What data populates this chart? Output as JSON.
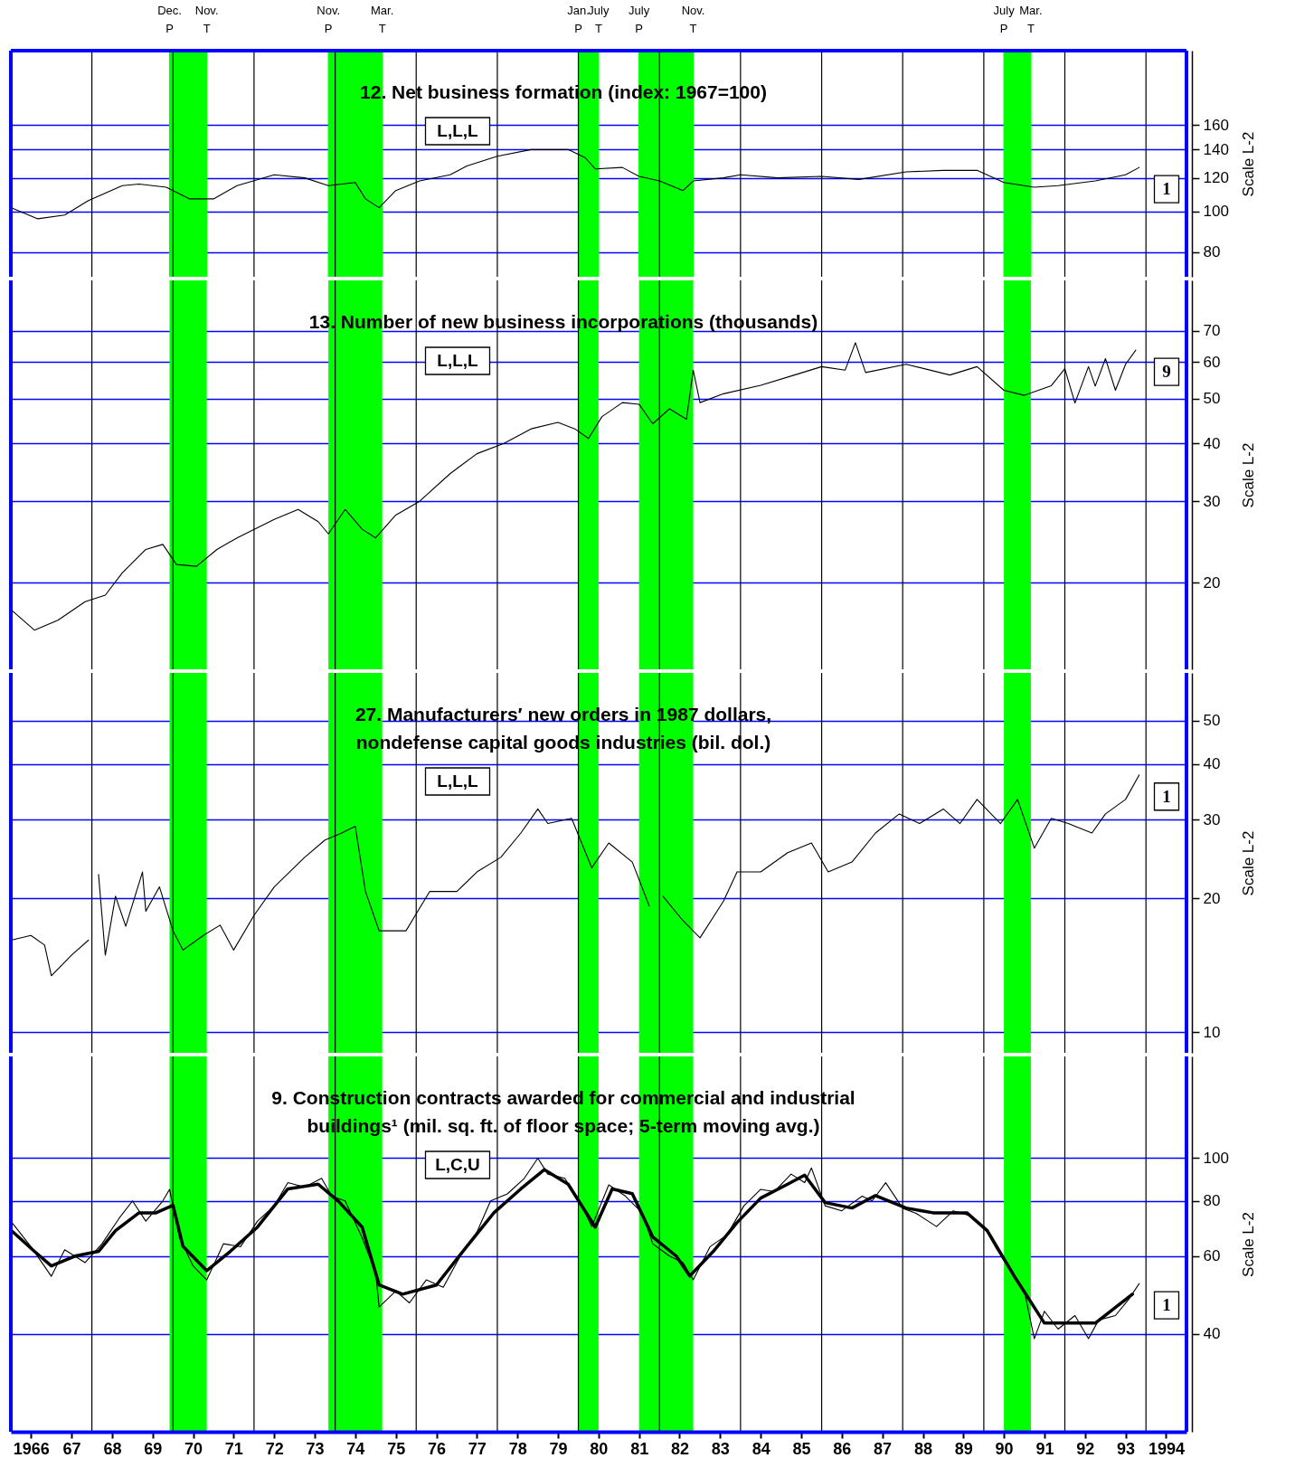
{
  "chart_data": [
    {
      "type": "line",
      "title": "12. Net business formation (index: 1967=100)",
      "annotations": [
        "L,L,L",
        "1"
      ],
      "ylabel": "Scale L-2",
      "xlim": [
        "1966",
        "1995"
      ],
      "ylim": [
        70,
        240
      ],
      "yticks": [
        80,
        100,
        120,
        140,
        160
      ],
      "log": true,
      "grid": "y",
      "tick_labels": "y",
      "series": [
        {
          "color": "#000000",
          "x": [
            "1966-01",
            "1966-09",
            "1967-05",
            "1967-12",
            "1968-10",
            "1969-03",
            "1969-11",
            "1970-06",
            "1971-01",
            "1971-08",
            "1972-07",
            "1973-04",
            "1973-11",
            "1974-07",
            "1974-10",
            "1975-02",
            "1975-07",
            "1976-02",
            "1976-11",
            "1977-04",
            "1978-01",
            "1978-11",
            "1979-10",
            "1980-03",
            "1980-06",
            "1981-02",
            "1981-07",
            "1982-01",
            "1982-08",
            "1982-11",
            "1983-08",
            "1984-01",
            "1984-12",
            "1986-01",
            "1986-12",
            "1988-02",
            "1989-01",
            "1989-11",
            "1990-07",
            "1991-04",
            "1991-11",
            "1992-10",
            "1993-07",
            "1993-11"
          ],
          "values": [
            102,
            96,
            98,
            106,
            115,
            116,
            114,
            107,
            107,
            115,
            122,
            120,
            115,
            117,
            107,
            102,
            112,
            118,
            122,
            128,
            135,
            140,
            140,
            134,
            126,
            127,
            121,
            118,
            112,
            118,
            120,
            122,
            120,
            121,
            119,
            124,
            125,
            125,
            117,
            114,
            115,
            118,
            122,
            127
          ]
        }
      ],
      "bands": [
        {
          "axis": "x",
          "from": "1969-12",
          "to": "1970-11",
          "color": "#00ff00"
        },
        {
          "axis": "x",
          "from": "1973-11",
          "to": "1975-03",
          "color": "#00ff00"
        },
        {
          "axis": "x",
          "from": "1980-01",
          "to": "1980-07",
          "color": "#00ff00"
        },
        {
          "axis": "x",
          "from": "1981-07",
          "to": "1982-11",
          "color": "#00ff00"
        },
        {
          "axis": "x",
          "from": "1990-07",
          "to": "1991-03",
          "color": "#00ff00"
        }
      ],
      "ref_lines": [
        {
          "axis": "x",
          "value": "1969-12",
          "label": "Dec. P",
          "color": "#00ff00"
        },
        {
          "axis": "x",
          "value": "1970-11",
          "label": "Nov. T",
          "color": "#00ff00"
        },
        {
          "axis": "x",
          "value": "1973-11",
          "label": "Nov. P",
          "color": "#00ff00"
        },
        {
          "axis": "x",
          "value": "1975-03",
          "label": "Mar. T",
          "color": "#00ff00"
        },
        {
          "axis": "x",
          "value": "1980-01",
          "label": "Jan. P",
          "color": "#00ff00"
        },
        {
          "axis": "x",
          "value": "1980-07",
          "label": "July T",
          "color": "#00ff00"
        },
        {
          "axis": "x",
          "value": "1981-07",
          "label": "July P",
          "color": "#00ff00"
        },
        {
          "axis": "x",
          "value": "1982-11",
          "label": "Nov. T",
          "color": "#00ff00"
        },
        {
          "axis": "x",
          "value": "1990-07",
          "label": "July P",
          "color": "#00ff00"
        },
        {
          "axis": "x",
          "value": "1991-03",
          "label": "Mar. T",
          "color": "#00ff00"
        },
        {
          "axis": "x",
          "value": "1968",
          "color": "#000000"
        },
        {
          "axis": "x",
          "value": "1970",
          "color": "#000000"
        },
        {
          "axis": "x",
          "value": "1972",
          "color": "#000000"
        },
        {
          "axis": "x",
          "value": "1974",
          "color": "#000000"
        },
        {
          "axis": "x",
          "value": "1976",
          "color": "#000000"
        },
        {
          "axis": "x",
          "value": "1978",
          "color": "#000000"
        },
        {
          "axis": "x",
          "value": "1980",
          "color": "#000000"
        },
        {
          "axis": "x",
          "value": "1982",
          "color": "#000000"
        },
        {
          "axis": "x",
          "value": "1984",
          "color": "#000000"
        },
        {
          "axis": "x",
          "value": "1986",
          "color": "#000000"
        },
        {
          "axis": "x",
          "value": "1988",
          "color": "#000000"
        },
        {
          "axis": "x",
          "value": "1990",
          "color": "#000000"
        },
        {
          "axis": "x",
          "value": "1992",
          "color": "#000000"
        },
        {
          "axis": "x",
          "value": "1994",
          "color": "#000000"
        }
      ]
    },
    {
      "type": "line",
      "title": "13. Number of new business incorporations (thousands)",
      "annotations": [
        "L,L,L",
        "9"
      ],
      "ylabel": "Scale L-2",
      "xlim": [
        "1966",
        "1995"
      ],
      "ylim": [
        13,
        90
      ],
      "yticks": [
        20,
        30,
        40,
        50,
        60,
        70
      ],
      "log": true,
      "grid": "y",
      "tick_labels": "y",
      "series": [
        {
          "color": "#000000",
          "x": [
            "1966-01",
            "1966-08",
            "1967-03",
            "1967-11",
            "1968-05",
            "1968-10",
            "1969-05",
            "1969-10",
            "1970-02",
            "1970-08",
            "1971-02",
            "1971-08",
            "1972-07",
            "1973-02",
            "1973-08",
            "1973-11",
            "1974-04",
            "1974-09",
            "1975-01",
            "1975-07",
            "1976-02",
            "1976-11",
            "1977-07",
            "1978-03",
            "1978-11",
            "1979-07",
            "1979-12",
            "1980-04",
            "1980-08",
            "1981-02",
            "1981-07",
            "1981-11",
            "1982-04",
            "1982-09",
            "1982-11",
            "1983-01",
            "1983-08",
            "1984-07",
            "1985-05",
            "1986-01",
            "1986-08",
            "1986-11",
            "1987-02",
            "1988-02",
            "1989-03",
            "1989-11",
            "1990-07",
            "1991-01",
            "1991-09",
            "1992-01",
            "1992-04",
            "1992-08",
            "1992-10",
            "1993-01",
            "1993-04",
            "1993-07",
            "1993-10"
          ],
          "values": [
            17.5,
            15.8,
            16.6,
            18.2,
            18.8,
            21,
            23.6,
            24.2,
            21.9,
            21.7,
            23.6,
            25,
            27.4,
            28.8,
            27.1,
            25.5,
            28.8,
            26.1,
            25,
            28,
            30,
            34.4,
            38,
            40,
            43,
            44.4,
            43,
            41,
            45.7,
            49,
            48.6,
            44.1,
            47.5,
            45.1,
            57.6,
            49,
            51.2,
            53.4,
            56.2,
            58.6,
            57.6,
            66,
            56.9,
            59.3,
            56.2,
            58.6,
            52.1,
            50.8,
            53.3,
            58,
            48.9,
            58.6,
            53.2,
            61,
            52.1,
            59.3,
            63.6
          ]
        }
      ],
      "bands": [
        {
          "axis": "x",
          "from": "1969-12",
          "to": "1970-11",
          "color": "#00ff00"
        },
        {
          "axis": "x",
          "from": "1973-11",
          "to": "1975-03",
          "color": "#00ff00"
        },
        {
          "axis": "x",
          "from": "1980-01",
          "to": "1980-07",
          "color": "#00ff00"
        },
        {
          "axis": "x",
          "from": "1981-07",
          "to": "1982-11",
          "color": "#00ff00"
        },
        {
          "axis": "x",
          "from": "1990-07",
          "to": "1991-03",
          "color": "#00ff00"
        }
      ],
      "ref_lines": [
        {
          "axis": "x",
          "value": "1968",
          "color": "#000000"
        },
        {
          "axis": "x",
          "value": "1970",
          "color": "#000000"
        },
        {
          "axis": "x",
          "value": "1972",
          "color": "#000000"
        },
        {
          "axis": "x",
          "value": "1974",
          "color": "#000000"
        },
        {
          "axis": "x",
          "value": "1976",
          "color": "#000000"
        },
        {
          "axis": "x",
          "value": "1978",
          "color": "#000000"
        },
        {
          "axis": "x",
          "value": "1980",
          "color": "#000000"
        },
        {
          "axis": "x",
          "value": "1982",
          "color": "#000000"
        },
        {
          "axis": "x",
          "value": "1984",
          "color": "#000000"
        },
        {
          "axis": "x",
          "value": "1986",
          "color": "#000000"
        },
        {
          "axis": "x",
          "value": "1988",
          "color": "#000000"
        },
        {
          "axis": "x",
          "value": "1990",
          "color": "#000000"
        },
        {
          "axis": "x",
          "value": "1992",
          "color": "#000000"
        },
        {
          "axis": "x",
          "value": "1994",
          "color": "#000000"
        }
      ]
    },
    {
      "type": "line",
      "title": "27. Manufacturers′ new orders in 1987 dollars,\nnondefense capital goods industries (bil. dol.)",
      "annotations": [
        "L,L,L",
        "1"
      ],
      "ylabel": "Scale L-2",
      "xlim": [
        "1966",
        "1995"
      ],
      "ylim": [
        9,
        64
      ],
      "yticks": [
        10,
        20,
        30,
        40,
        50
      ],
      "log": true,
      "grid": "y",
      "tick_labels": "y",
      "series": [
        {
          "color": "#000000",
          "x": [
            "1966-01",
            "1966-07",
            "1966-11",
            "1967-01",
            "1967-07",
            "1967-12",
            "1968-02",
            "1968-03",
            "1968-05",
            "1968-08",
            "1968-11",
            "1969-04",
            "1969-05",
            "1969-09",
            "1970-01",
            "1970-04",
            "1970-10",
            "1971-03",
            "1971-07",
            "1972-01",
            "1972-07",
            "1973-04",
            "1973-10",
            "1974-03",
            "1974-07",
            "1974-10",
            "1975-02",
            "1975-10",
            "1976-05",
            "1977-01",
            "1977-07",
            "1978-02",
            "1978-08",
            "1979-01",
            "1979-04",
            "1979-11",
            "1980-05",
            "1980-10",
            "1981-05",
            "1981-10",
            "1981-12",
            "1982-02",
            "1982-08",
            "1983-01",
            "1983-08",
            "1983-12",
            "1984-07",
            "1985-03",
            "1985-10",
            "1986-03",
            "1986-10",
            "1987-05",
            "1987-12",
            "1988-06",
            "1989-01",
            "1989-06",
            "1989-11",
            "1990-06",
            "1990-11",
            "1991-04",
            "1991-09",
            "1992-02",
            "1992-09",
            "1993-01",
            "1993-07",
            "1993-11"
          ],
          "values": [
            16.1,
            16.5,
            15.7,
            13.4,
            14.9,
            16.1,
            null,
            22.6,
            14.9,
            20.2,
            17.3,
            22.9,
            18.7,
            21.2,
            16.9,
            15.3,
            16.5,
            17.4,
            15.3,
            18.3,
            21.2,
            24.7,
            27,
            28,
            29,
            20.7,
            16.9,
            16.9,
            20.7,
            20.7,
            22.9,
            24.7,
            28,
            31.7,
            29.4,
            30.2,
            23.4,
            26.6,
            24.1,
            19.2,
            null,
            20.2,
            17.8,
            16.3,
            19.7,
            22.9,
            22.9,
            25.3,
            26.6,
            22.9,
            24.1,
            28,
            30.9,
            29.4,
            31.7,
            29.4,
            33.3,
            29.4,
            33.3,
            25.9,
            30.2,
            29.4,
            28,
            30.9,
            33.3,
            37.8
          ]
        }
      ],
      "bands": [
        {
          "axis": "x",
          "from": "1969-12",
          "to": "1970-11",
          "color": "#00ff00"
        },
        {
          "axis": "x",
          "from": "1973-11",
          "to": "1975-03",
          "color": "#00ff00"
        },
        {
          "axis": "x",
          "from": "1980-01",
          "to": "1980-07",
          "color": "#00ff00"
        },
        {
          "axis": "x",
          "from": "1981-07",
          "to": "1982-11",
          "color": "#00ff00"
        },
        {
          "axis": "x",
          "from": "1990-07",
          "to": "1991-03",
          "color": "#00ff00"
        }
      ],
      "ref_lines": [
        {
          "axis": "x",
          "value": "1968",
          "color": "#000000"
        },
        {
          "axis": "x",
          "value": "1970",
          "color": "#000000"
        },
        {
          "axis": "x",
          "value": "1972",
          "color": "#000000"
        },
        {
          "axis": "x",
          "value": "1974",
          "color": "#000000"
        },
        {
          "axis": "x",
          "value": "1976",
          "color": "#000000"
        },
        {
          "axis": "x",
          "value": "1978",
          "color": "#000000"
        },
        {
          "axis": "x",
          "value": "1980",
          "color": "#000000"
        },
        {
          "axis": "x",
          "value": "1982",
          "color": "#000000"
        },
        {
          "axis": "x",
          "value": "1984",
          "color": "#000000"
        },
        {
          "axis": "x",
          "value": "1986",
          "color": "#000000"
        },
        {
          "axis": "x",
          "value": "1988",
          "color": "#000000"
        },
        {
          "axis": "x",
          "value": "1990",
          "color": "#000000"
        },
        {
          "axis": "x",
          "value": "1992",
          "color": "#000000"
        },
        {
          "axis": "x",
          "value": "1994",
          "color": "#000000"
        }
      ]
    },
    {
      "type": "line",
      "title": "9. Construction contracts awarded for commercial and industrial\nbuildings¹ (mil. sq. ft. of floor space; 5-term moving avg.)",
      "annotations": [
        "L,C,U",
        "1"
      ],
      "ylabel": "Scale L-2",
      "xlim": [
        "1966",
        "1995"
      ],
      "ylim": [
        24,
        170
      ],
      "yticks": [
        40,
        60,
        80,
        100
      ],
      "log": true,
      "grid": "y",
      "xticks": [
        {
          "value": "1966-07",
          "label": "1966"
        },
        {
          "value": "1967-07",
          "label": "67"
        },
        {
          "value": "1968-07",
          "label": "68"
        },
        {
          "value": "1969-07",
          "label": "69"
        },
        {
          "value": "1970-07",
          "label": "70"
        },
        {
          "value": "1971-07",
          "label": "71"
        },
        {
          "value": "1972-07",
          "label": "72"
        },
        {
          "value": "1973-07",
          "label": "73"
        },
        {
          "value": "1974-07",
          "label": "74"
        },
        {
          "value": "1975-07",
          "label": "75"
        },
        {
          "value": "1976-07",
          "label": "76"
        },
        {
          "value": "1977-07",
          "label": "77"
        },
        {
          "value": "1978-07",
          "label": "78"
        },
        {
          "value": "1979-07",
          "label": "79"
        },
        {
          "value": "1980-07",
          "label": "80"
        },
        {
          "value": "1981-07",
          "label": "81"
        },
        {
          "value": "1982-07",
          "label": "82"
        },
        {
          "value": "1983-07",
          "label": "83"
        },
        {
          "value": "1984-07",
          "label": "84"
        },
        {
          "value": "1985-07",
          "label": "85"
        },
        {
          "value": "1986-07",
          "label": "86"
        },
        {
          "value": "1987-07",
          "label": "87"
        },
        {
          "value": "1988-07",
          "label": "88"
        },
        {
          "value": "1989-07",
          "label": "89"
        },
        {
          "value": "1990-07",
          "label": "90"
        },
        {
          "value": "1991-07",
          "label": "91"
        },
        {
          "value": "1992-07",
          "label": "92"
        },
        {
          "value": "1993-07",
          "label": "93"
        },
        {
          "value": "1994-07",
          "label": "1994"
        }
      ],
      "series": [
        {
          "color": "#000000",
          "x": [
            "1966-01",
            "1966-07",
            "1967-01",
            "1967-05",
            "1967-11",
            "1968-04",
            "1968-09",
            "1969-01",
            "1969-05",
            "1969-10",
            "1969-12",
            "1970-03",
            "1970-07",
            "1970-11",
            "1971-04",
            "1971-09",
            "1972-02",
            "1972-07",
            "1972-11",
            "1973-04",
            "1973-09",
            "1973-12",
            "1974-04",
            "1974-09",
            "1975-01",
            "1975-02",
            "1975-07",
            "1975-11",
            "1976-04",
            "1976-09",
            "1977-02",
            "1977-07",
            "1977-11",
            "1978-04",
            "1978-09",
            "1979-01",
            "1979-04",
            "1979-09",
            "1980-02",
            "1980-05",
            "1980-10",
            "1981-03",
            "1981-08",
            "1981-11",
            "1982-04",
            "1982-08",
            "1982-11",
            "1983-04",
            "1983-09",
            "1984-02",
            "1984-07",
            "1984-11",
            "1985-04",
            "1985-08",
            "1985-10",
            "1986-02",
            "1986-07",
            "1987-01",
            "1987-04",
            "1987-08",
            "1988-01",
            "1988-05",
            "1988-11",
            "1989-04",
            "1989-09",
            "1990-01",
            "1990-05",
            "1990-10",
            "1991-01",
            "1991-04",
            "1991-07",
            "1991-11",
            "1992-04",
            "1992-08",
            "1992-11",
            "1993-04",
            "1993-08",
            "1993-11"
          ],
          "values": [
            72,
            63,
            54,
            62,
            58,
            64,
            73,
            80,
            72,
            80,
            85,
            66,
            57,
            53,
            64,
            63,
            72,
            78,
            88,
            86,
            90,
            82,
            80,
            66,
            55,
            46,
            50,
            47,
            53,
            51,
            60,
            68,
            80,
            83,
            90,
            100,
            92,
            90,
            78,
            70,
            87,
            82,
            75,
            64,
            60,
            58,
            53,
            63,
            67,
            78,
            85,
            84,
            92,
            88,
            95,
            78,
            76,
            82,
            80,
            88,
            77,
            75,
            70,
            76,
            74,
            70,
            62,
            54,
            50,
            39,
            45,
            41,
            44,
            39,
            43,
            44,
            48,
            52
          ]
        },
        {
          "color": "#000000",
          "x": [
            "1966-01",
            "1966-08",
            "1967-01",
            "1967-08",
            "1968-03",
            "1968-08",
            "1969-03",
            "1969-08",
            "1970-01",
            "1970-04",
            "1970-11",
            "1971-06",
            "1972-02",
            "1972-11",
            "1973-08",
            "1974-02",
            "1974-09",
            "1975-02",
            "1975-09",
            "1976-07",
            "1977-04",
            "1977-12",
            "1978-08",
            "1979-03",
            "1979-10",
            "1980-06",
            "1980-11",
            "1981-05",
            "1981-11",
            "1982-06",
            "1982-10",
            "1983-05",
            "1983-12",
            "1984-07",
            "1985-03",
            "1985-08",
            "1986-02",
            "1986-10",
            "1987-05",
            "1988-02",
            "1988-10",
            "1989-08",
            "1990-02",
            "1990-10",
            "1991-07",
            "1992-02",
            "1992-10",
            "1993-09"
          ],
          "values": [
            68.7,
            61.5,
            57,
            60,
            61.5,
            68.5,
            75.2,
            75.2,
            78.2,
            63.1,
            55.6,
            61.5,
            69.8,
            85.2,
            87.3,
            79.8,
            69.8,
            51.6,
            49.2,
            51.6,
            63.1,
            75.2,
            85.2,
            94.2,
            87.3,
            69.8,
            85.2,
            83.1,
            66.3,
            60,
            54.1,
            61.5,
            71.5,
            81.2,
            87.3,
            91.5,
            79.3,
            77.1,
            82.3,
            77.1,
            75.2,
            75.2,
            68.5,
            54.1,
            42.3,
            42.3,
            42.3,
            49.2
          ]
        }
      ],
      "bands": [
        {
          "axis": "x",
          "from": "1969-12",
          "to": "1970-11",
          "color": "#00ff00"
        },
        {
          "axis": "x",
          "from": "1973-11",
          "to": "1975-03",
          "color": "#00ff00"
        },
        {
          "axis": "x",
          "from": "1980-01",
          "to": "1980-07",
          "color": "#00ff00"
        },
        {
          "axis": "x",
          "from": "1981-07",
          "to": "1982-11",
          "color": "#00ff00"
        },
        {
          "axis": "x",
          "from": "1990-07",
          "to": "1991-03",
          "color": "#00ff00"
        }
      ],
      "ref_lines": [
        {
          "axis": "x",
          "value": "1968",
          "color": "#000000"
        },
        {
          "axis": "x",
          "value": "1970",
          "color": "#000000"
        },
        {
          "axis": "x",
          "value": "1972",
          "color": "#000000"
        },
        {
          "axis": "x",
          "value": "1974",
          "color": "#000000"
        },
        {
          "axis": "x",
          "value": "1976",
          "color": "#000000"
        },
        {
          "axis": "x",
          "value": "1978",
          "color": "#000000"
        },
        {
          "axis": "x",
          "value": "1980",
          "color": "#000000"
        },
        {
          "axis": "x",
          "value": "1982",
          "color": "#000000"
        },
        {
          "axis": "x",
          "value": "1984",
          "color": "#000000"
        },
        {
          "axis": "x",
          "value": "1986",
          "color": "#000000"
        },
        {
          "axis": "x",
          "value": "1988",
          "color": "#000000"
        },
        {
          "axis": "x",
          "value": "1990",
          "color": "#000000"
        },
        {
          "axis": "x",
          "value": "1992",
          "color": "#000000"
        },
        {
          "axis": "x",
          "value": "1994",
          "color": "#000000"
        }
      ]
    }
  ]
}
